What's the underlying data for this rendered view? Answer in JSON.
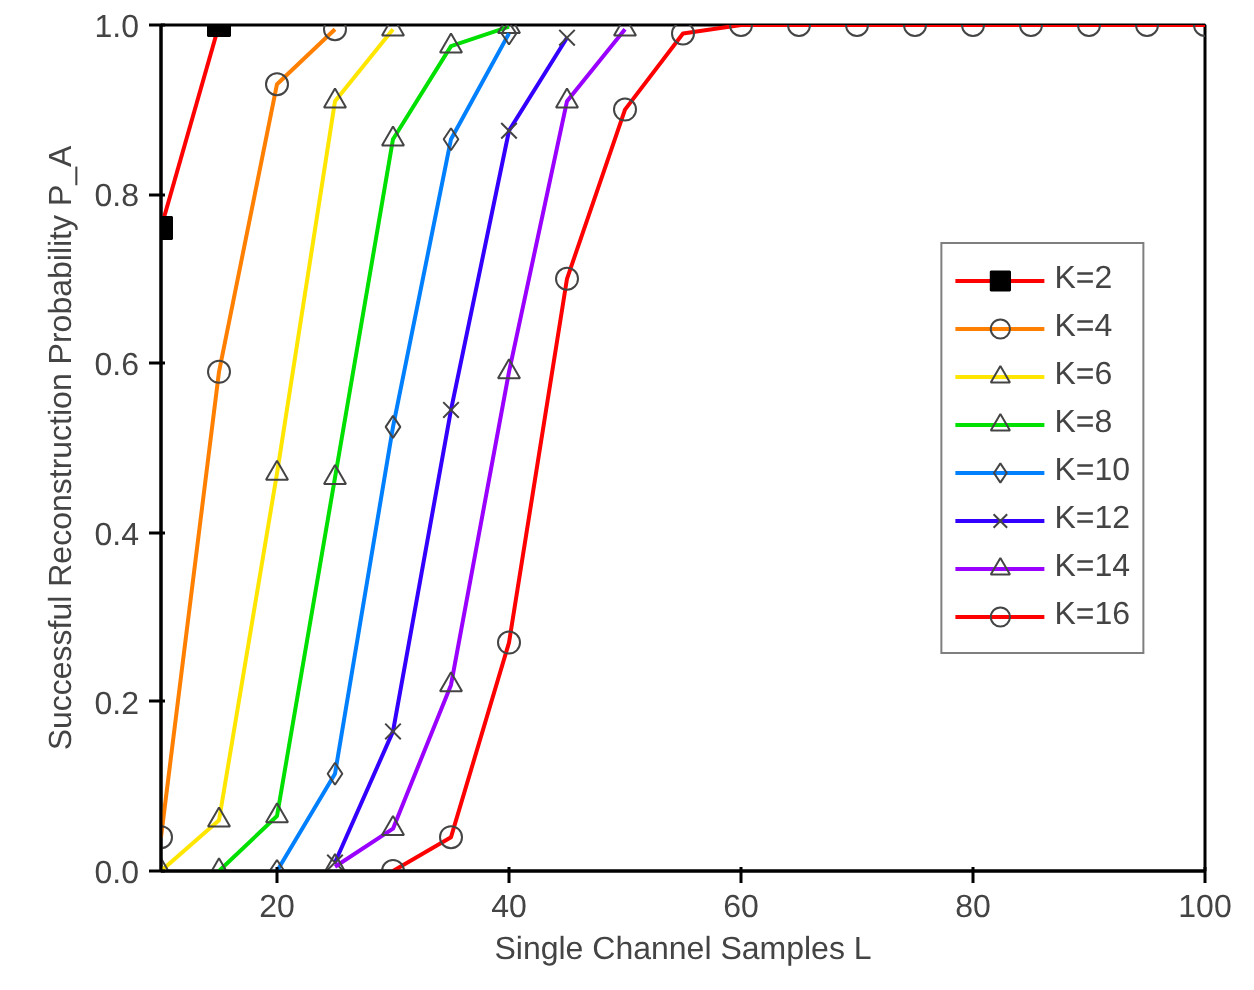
{
  "chart_data": {
    "type": "line",
    "xlabel": "Single Channel Samples L",
    "ylabel": "Successful Reconstruction Probability P_A",
    "x": [
      10,
      15,
      20,
      25,
      30,
      35,
      40,
      45,
      50,
      55,
      60,
      65,
      70,
      75,
      80,
      85,
      90,
      95,
      100
    ],
    "xlim": [
      10,
      100
    ],
    "xticks": [
      20,
      40,
      60,
      80,
      100
    ],
    "ylim": [
      0,
      1
    ],
    "yticks": [
      {
        "value": 0,
        "label": "0.0"
      },
      {
        "value": 0.2,
        "label": "0.2"
      },
      {
        "value": 0.4,
        "label": "0.4"
      },
      {
        "value": 0.6,
        "label": "0.6"
      },
      {
        "value": 0.8,
        "label": "0.8"
      },
      {
        "value": 1,
        "label": "1.0"
      }
    ],
    "grid": false,
    "legend": "right",
    "series": [
      {
        "name": "K=2",
        "color": "#ff0000",
        "marker": "square",
        "values": [
          0.76,
          1,
          null,
          null,
          null,
          null,
          null,
          null,
          null,
          null,
          null,
          null,
          null,
          null,
          null,
          null,
          null,
          null,
          null
        ]
      },
      {
        "name": "K=4",
        "color": "#ff7f00",
        "marker": "circle",
        "values": [
          0.04,
          0.59,
          0.93,
          0.995,
          null,
          null,
          null,
          null,
          null,
          null,
          null,
          null,
          null,
          null,
          null,
          null,
          null,
          null,
          null
        ]
      },
      {
        "name": "K=6",
        "color": "#ffe600",
        "marker": "triangle",
        "values": [
          0,
          0.06,
          0.47,
          0.91,
          0.995,
          null,
          null,
          null,
          null,
          null,
          null,
          null,
          null,
          null,
          null,
          null,
          null,
          null,
          null
        ]
      },
      {
        "name": "K=8",
        "color": "#00e000",
        "marker": "triangle",
        "values": [
          null,
          0,
          0.065,
          0.465,
          0.865,
          0.975,
          0.998,
          null,
          null,
          null,
          null,
          null,
          null,
          null,
          null,
          null,
          null,
          null,
          null
        ]
      },
      {
        "name": "K=10",
        "color": "#0080ff",
        "marker": "diamond",
        "values": [
          null,
          null,
          0,
          0.115,
          0.525,
          0.865,
          0.99,
          null,
          null,
          null,
          null,
          null,
          null,
          null,
          null,
          null,
          null,
          null,
          null
        ]
      },
      {
        "name": "K=12",
        "color": "#3300ff",
        "marker": "cross",
        "values": [
          null,
          null,
          null,
          0.01,
          0.165,
          0.545,
          0.875,
          0.985,
          null,
          null,
          null,
          null,
          null,
          null,
          null,
          null,
          null,
          null,
          null
        ]
      },
      {
        "name": "K=14",
        "color": "#9900ff",
        "marker": "triangle",
        "values": [
          null,
          null,
          null,
          0.005,
          0.05,
          0.22,
          0.59,
          0.91,
          0.995,
          null,
          null,
          null,
          null,
          null,
          null,
          null,
          null,
          null,
          null
        ]
      },
      {
        "name": "K=16",
        "color": "#ff0000",
        "marker": "circle",
        "values": [
          null,
          null,
          null,
          null,
          0,
          0.04,
          0.27,
          0.7,
          0.9,
          0.99,
          1,
          1,
          1,
          1,
          1,
          1,
          1,
          1,
          1
        ]
      }
    ]
  }
}
